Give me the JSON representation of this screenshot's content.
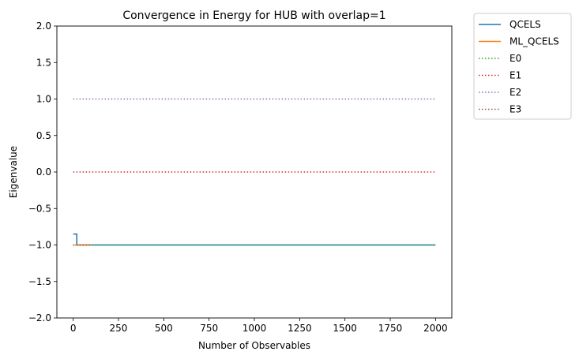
{
  "chart_data": {
    "type": "line",
    "title": "Convergence in Energy for HUB with overlap=1",
    "xlabel": "Number of Observables",
    "ylabel": "Eigenvalue",
    "xlim": [
      -90,
      2090
    ],
    "ylim": [
      -2.0,
      2.0
    ],
    "xticks": [
      0,
      250,
      500,
      750,
      1000,
      1250,
      1500,
      1750,
      2000
    ],
    "yticks": [
      -2.0,
      -1.5,
      -1.0,
      -0.5,
      0.0,
      0.5,
      1.0,
      1.5,
      2.0
    ],
    "xtick_labels": [
      "0",
      "250",
      "500",
      "750",
      "1000",
      "1250",
      "1500",
      "1750",
      "2000"
    ],
    "ytick_labels": [
      "−2.0",
      "−1.5",
      "−1.0",
      "−0.5",
      "0.0",
      "0.5",
      "1.0",
      "1.5",
      "2.0"
    ],
    "grid": false,
    "legend_position": "outside-top-right",
    "series": [
      {
        "name": "QCELS",
        "style": "solid",
        "color": "#1f77b4",
        "x": [
          0,
          10,
          20,
          20,
          30,
          50,
          100,
          500,
          1000,
          1500,
          2000
        ],
        "y": [
          -0.85,
          -0.85,
          -0.85,
          -1.0,
          -1.0,
          -1.0,
          -1.0,
          -1.0,
          -1.0,
          -1.0,
          -1.0
        ]
      },
      {
        "name": "ML_QCELS",
        "style": "solid",
        "color": "#ff7f0e",
        "x": [
          10,
          30,
          60,
          100
        ],
        "y": [
          -1.0,
          -1.0,
          -1.0,
          -1.0
        ]
      },
      {
        "name": "E0",
        "style": "dotted",
        "color": "#2ca02c",
        "x": [
          0,
          2000
        ],
        "y": [
          -1.0,
          -1.0
        ]
      },
      {
        "name": "E1",
        "style": "dotted",
        "color": "#d62728",
        "x": [
          0,
          2000
        ],
        "y": [
          0.0,
          0.0
        ]
      },
      {
        "name": "E2",
        "style": "dotted",
        "color": "#9467bd",
        "x": [
          0,
          2000
        ],
        "y": [
          1.0,
          1.0
        ]
      },
      {
        "name": "E3",
        "style": "dotted",
        "color": "#8c564b",
        "x": [
          0,
          100
        ],
        "y": [
          -1.0,
          -1.0
        ]
      }
    ]
  }
}
